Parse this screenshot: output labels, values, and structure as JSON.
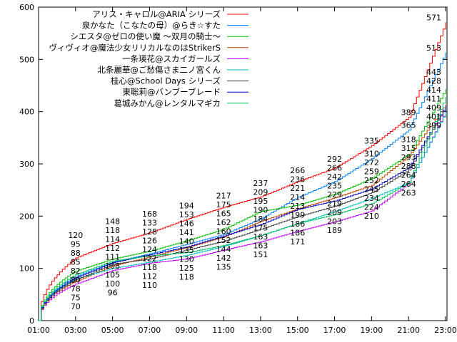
{
  "chart_data": {
    "type": "line",
    "title": "",
    "xlabel": "",
    "ylabel": "",
    "ylim": [
      0,
      600
    ],
    "yticks": [
      "0",
      "100",
      "200",
      "300",
      "400",
      "500",
      "600"
    ],
    "x": [
      "01:00",
      "03:00",
      "05:00",
      "07:00",
      "09:00",
      "11:00",
      "13:00",
      "15:00",
      "17:00",
      "19:00",
      "21:00",
      "23:00"
    ],
    "xticks": [
      "01:00",
      "03:00",
      "05:00",
      "07:00",
      "09:00",
      "11:00",
      "13:00",
      "15:00",
      "17:00",
      "19:00",
      "21:00",
      "23:00"
    ],
    "grid": false,
    "legend_position": "top-left",
    "series": [
      {
        "name": "アリス・キャロル@ARIA シリーズ",
        "color": "#ff0000",
        "values": [
          0,
          120,
          148,
          168,
          194,
          217,
          237,
          266,
          292,
          335,
          389,
          571
        ]
      },
      {
        "name": "泉かなた（こなたの母）@らき☆すた",
        "color": "#0080ff",
        "values": [
          0,
          85,
          112,
          128,
          146,
          165,
          195,
          236,
          266,
          310,
          365,
          513
        ]
      },
      {
        "name": "シエスタ@ゼロの使い魔 ～双月の騎士～",
        "color": "#00c000",
        "values": [
          0,
          95,
          118,
          133,
          153,
          175,
          209,
          221,
          242,
          272,
          318,
          443
        ]
      },
      {
        "name": "ヴィヴィオ@魔法少女リリカルなのはStrikerS",
        "color": "#c04000",
        "values": [
          0,
          75,
          105,
          122,
          140,
          160,
          190,
          214,
          235,
          259,
          315,
          414
        ]
      },
      {
        "name": "一条瑛花@スカイガールズ",
        "color": "#c000ff",
        "values": [
          0,
          70,
          96,
          110,
          118,
          135,
          151,
          171,
          189,
          210,
          263,
          401
        ]
      },
      {
        "name": "北条麗華@ご愁傷さま二ノ宮くん",
        "color": "#00c0c0",
        "values": [
          0,
          80,
          100,
          112,
          125,
          142,
          163,
          186,
          209,
          234,
          264,
          399
        ]
      },
      {
        "name": "桂心@School Days シリーズ",
        "color": "#404040",
        "values": [
          0,
          78,
          108,
          118,
          135,
          152,
          175,
          199,
          219,
          245,
          288,
          409
        ]
      },
      {
        "name": "東聡莉@バンブーブレード",
        "color": "#0000c0",
        "values": [
          0,
          82,
          111,
          126,
          141,
          162,
          184,
          213,
          229,
          252,
          293,
          411
        ]
      },
      {
        "name": "葛城みかん@レンタルマギカ",
        "color": "#00c060",
        "values": [
          0,
          88,
          114,
          124,
          130,
          144,
          163,
          186,
          203,
          224,
          264,
          428
        ]
      }
    ]
  }
}
